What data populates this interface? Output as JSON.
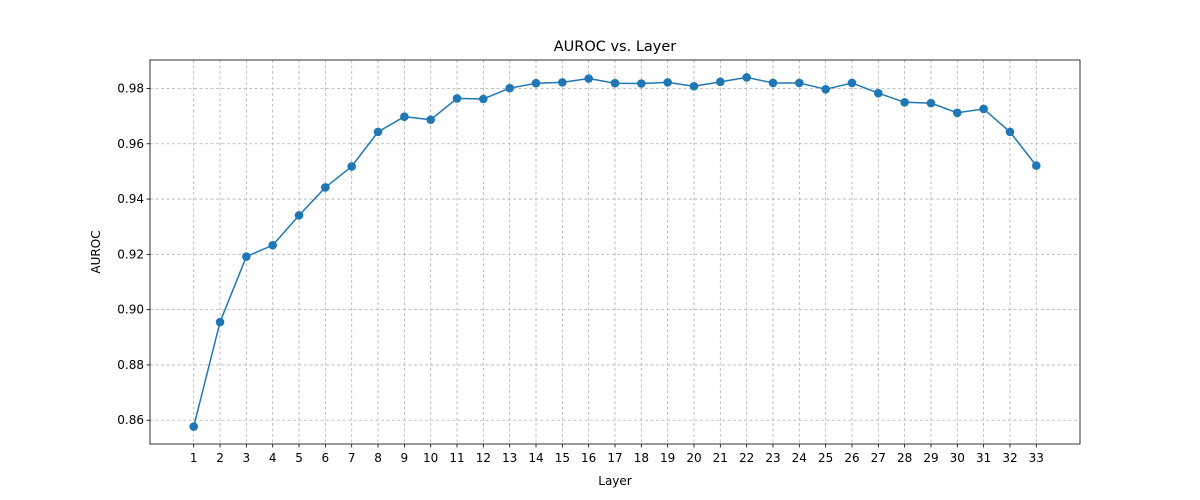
{
  "chart_data": {
    "type": "line",
    "title": "AUROC vs. Layer",
    "xlabel": "Layer",
    "ylabel": "AUROC",
    "x": [
      1,
      2,
      3,
      4,
      5,
      6,
      7,
      8,
      9,
      10,
      11,
      12,
      13,
      14,
      15,
      16,
      17,
      18,
      19,
      20,
      21,
      22,
      23,
      24,
      25,
      26,
      27,
      28,
      29,
      30,
      31,
      32,
      33
    ],
    "series": [
      {
        "values": [
          0.8577,
          0.8955,
          0.9192,
          0.9233,
          0.9341,
          0.9442,
          0.9518,
          0.9643,
          0.9698,
          0.9687,
          0.9764,
          0.9762,
          0.9801,
          0.9819,
          0.9822,
          0.9836,
          0.9819,
          0.9818,
          0.9822,
          0.9808,
          0.9824,
          0.984,
          0.982,
          0.982,
          0.9797,
          0.982,
          0.9783,
          0.975,
          0.9747,
          0.9712,
          0.9726,
          0.9643,
          0.9521
        ],
        "color": "#1f77b4",
        "marker": "circle"
      }
    ],
    "xlim": [
      -0.66,
      34.66
    ],
    "ylim": [
      0.8514,
      0.9903
    ],
    "yticks": [
      0.86,
      0.88,
      0.9,
      0.92,
      0.94,
      0.96,
      0.98
    ],
    "ytick_labels": [
      "0.86",
      "0.88",
      "0.90",
      "0.92",
      "0.94",
      "0.96",
      "0.98"
    ],
    "xtick_labels": [
      "1",
      "2",
      "3",
      "4",
      "5",
      "6",
      "7",
      "8",
      "9",
      "10",
      "11",
      "12",
      "13",
      "14",
      "15",
      "16",
      "17",
      "18",
      "19",
      "20",
      "21",
      "22",
      "23",
      "24",
      "25",
      "26",
      "27",
      "28",
      "29",
      "30",
      "31",
      "32",
      "33"
    ],
    "grid": true,
    "legend": "none"
  }
}
